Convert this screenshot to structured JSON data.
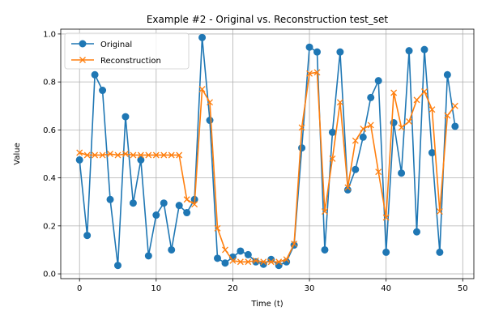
{
  "chart_data": {
    "type": "line",
    "title": "Example #2 - Original vs. Reconstruction test_set",
    "xlabel": "Time (t)",
    "ylabel": "Value",
    "xlim": [
      -2.45,
      51.45
    ],
    "ylim": [
      -0.02,
      1.02
    ],
    "xticks": [
      0,
      10,
      20,
      30,
      40,
      50
    ],
    "yticks": [
      0.0,
      0.2,
      0.4,
      0.6,
      0.8,
      1.0
    ],
    "xtick_labels": [
      "0",
      "10",
      "20",
      "30",
      "40",
      "50"
    ],
    "ytick_labels": [
      "0.0",
      "0.2",
      "0.4",
      "0.6",
      "0.8",
      "1.0"
    ],
    "grid": true,
    "legend_position": "upper-left",
    "x": [
      0,
      1,
      2,
      3,
      4,
      5,
      6,
      7,
      8,
      9,
      10,
      11,
      12,
      13,
      14,
      15,
      16,
      17,
      18,
      19,
      20,
      21,
      22,
      23,
      24,
      25,
      26,
      27,
      28,
      29,
      30,
      31,
      32,
      33,
      34,
      35,
      36,
      37,
      38,
      39,
      40,
      41,
      42,
      43,
      44,
      45,
      46,
      47,
      48,
      49
    ],
    "series": [
      {
        "name": "Original",
        "color": "#1f77b4",
        "marker": "circle",
        "values": [
          0.475,
          0.16,
          0.83,
          0.765,
          0.31,
          0.035,
          0.655,
          0.295,
          0.475,
          0.075,
          0.245,
          0.295,
          0.1,
          0.285,
          0.255,
          0.31,
          0.985,
          0.64,
          0.065,
          0.045,
          0.07,
          0.095,
          0.08,
          0.05,
          0.04,
          0.06,
          0.035,
          0.05,
          0.12,
          0.525,
          0.945,
          0.925,
          0.1,
          0.59,
          0.925,
          0.35,
          0.435,
          0.57,
          0.735,
          0.805,
          0.09,
          0.63,
          0.42,
          0.93,
          0.175,
          0.935,
          0.505,
          0.09,
          0.83,
          0.615
        ]
      },
      {
        "name": "Reconstruction",
        "color": "#ff7f0e",
        "marker": "x",
        "values": [
          0.505,
          0.495,
          0.495,
          0.495,
          0.5,
          0.495,
          0.5,
          0.495,
          0.495,
          0.495,
          0.495,
          0.495,
          0.495,
          0.495,
          0.31,
          0.29,
          0.77,
          0.715,
          0.19,
          0.1,
          0.055,
          0.05,
          0.05,
          0.055,
          0.05,
          0.05,
          0.05,
          0.06,
          0.125,
          0.61,
          0.835,
          0.84,
          0.26,
          0.48,
          0.715,
          0.36,
          0.555,
          0.605,
          0.62,
          0.425,
          0.235,
          0.755,
          0.61,
          0.635,
          0.725,
          0.76,
          0.685,
          0.26,
          0.66,
          0.7
        ]
      }
    ]
  }
}
